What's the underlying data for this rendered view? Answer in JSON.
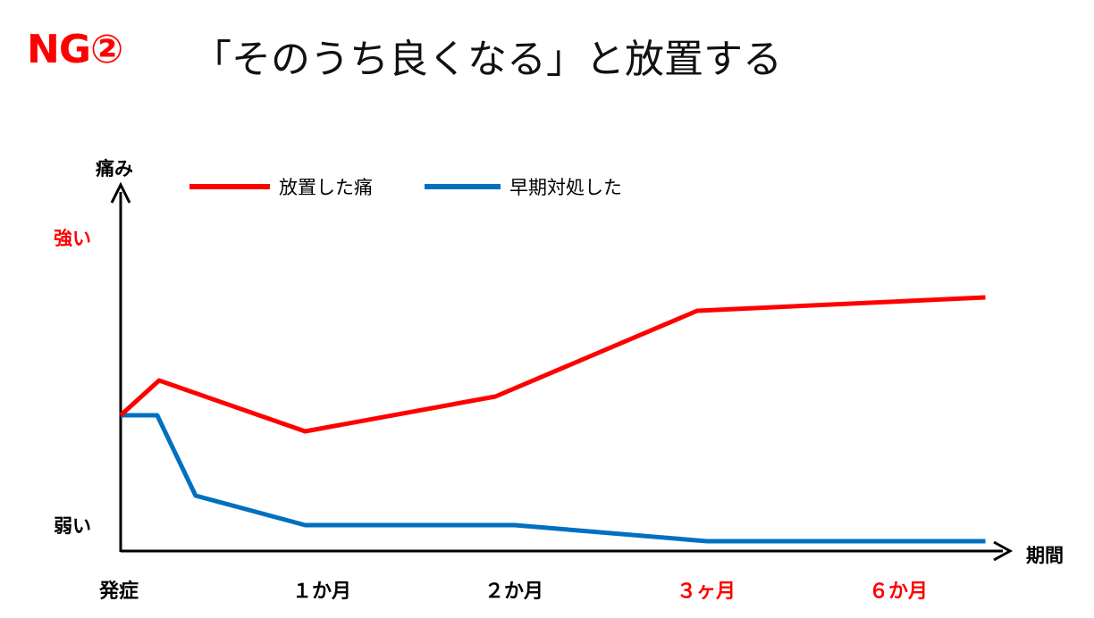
{
  "header": {
    "prefix": "NG②",
    "text": "「そのうち良くなる」と放置する"
  },
  "chart_data": {
    "type": "line",
    "ylabel": "痛み",
    "xlabel": "期間",
    "y_axis_labels": [
      {
        "text": "強い",
        "value": 1.0,
        "color": "#ff0000"
      },
      {
        "text": "弱い",
        "value": 0.0,
        "color": "#000000"
      }
    ],
    "categories": [
      {
        "label": "発症",
        "pos": 0,
        "color": "#000000"
      },
      {
        "label": "１か月",
        "pos": 1,
        "color": "#000000"
      },
      {
        "label": "２か月",
        "pos": 2,
        "color": "#000000"
      },
      {
        "label": "３ヶ月",
        "pos": 3,
        "color": "#ff0000"
      },
      {
        "label": "６か月",
        "pos": 4,
        "color": "#ff0000"
      }
    ],
    "xlim": [
      0,
      4.5
    ],
    "ylim": [
      0,
      1.1
    ],
    "legend": "top",
    "series": [
      {
        "name": "放置した痛",
        "color": "#ff0000",
        "points": [
          [
            0,
            0.49
          ],
          [
            0.2,
            0.62
          ],
          [
            0.96,
            0.43
          ],
          [
            1.95,
            0.56
          ],
          [
            3.0,
            0.88
          ],
          [
            4.5,
            0.93
          ]
        ]
      },
      {
        "name": "早期対処した",
        "color": "#0070c0",
        "points": [
          [
            0,
            0.49
          ],
          [
            0.19,
            0.49
          ],
          [
            0.39,
            0.19
          ],
          [
            0.96,
            0.08
          ],
          [
            2.05,
            0.08
          ],
          [
            3.05,
            0.02
          ],
          [
            4.5,
            0.02
          ]
        ]
      }
    ]
  }
}
